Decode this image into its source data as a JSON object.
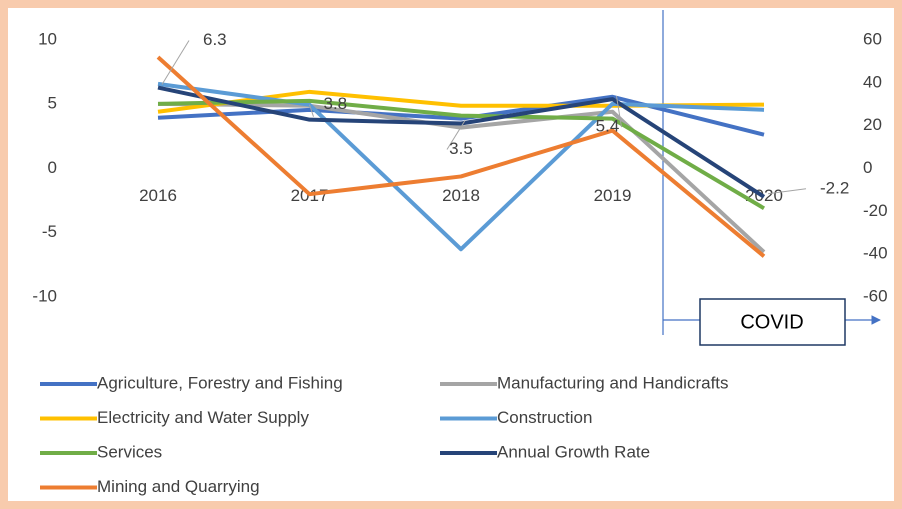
{
  "chart_data": {
    "type": "line",
    "categories": [
      "2016",
      "2017",
      "2018",
      "2019",
      "2020"
    ],
    "ylim": [
      -10,
      10
    ],
    "yticks": [
      -10,
      -5,
      0,
      5,
      10
    ],
    "y2lim": [
      -60,
      60
    ],
    "y2ticks": [
      -60,
      -40,
      -20,
      0,
      20,
      40,
      60
    ],
    "grid": false,
    "legend": "bottom",
    "annotation": "COVID",
    "series": [
      {
        "name": "Agriculture, Forestry and Fishing",
        "color": "#4472c4",
        "axis": "y2",
        "values": [
          23.7,
          27.4,
          23.3,
          33.5,
          15.8
        ]
      },
      {
        "name": "Manufacturing and Handicrafts",
        "color": "#a5a5a5",
        "axis": "y2",
        "values": [
          30.2,
          29.3,
          19.1,
          26.5,
          -39
        ]
      },
      {
        "name": "Electricity and Water Supply",
        "color": "#ffc000",
        "axis": "y2",
        "values": [
          26.5,
          35.8,
          29.3,
          29.3,
          29.8
        ]
      },
      {
        "name": "Construction",
        "color": "#5b9bd5",
        "axis": "y2",
        "values": [
          39.5,
          29.8,
          -37.7,
          30.2,
          27.4
        ]
      },
      {
        "name": "Services",
        "color": "#70ad47",
        "axis": "y2",
        "values": [
          30.2,
          31.6,
          24.7,
          23.3,
          -18.6
        ]
      },
      {
        "name": "Annual Growth Rate",
        "color": "#264478",
        "values": [
          6.3,
          3.8,
          3.5,
          5.4,
          -2.2
        ]
      },
      {
        "name": "Mining and Quarrying",
        "color": "#ed7d31",
        "axis": "y2",
        "values": [
          52,
          -12,
          -3.7,
          17.7,
          -41
        ]
      }
    ]
  }
}
